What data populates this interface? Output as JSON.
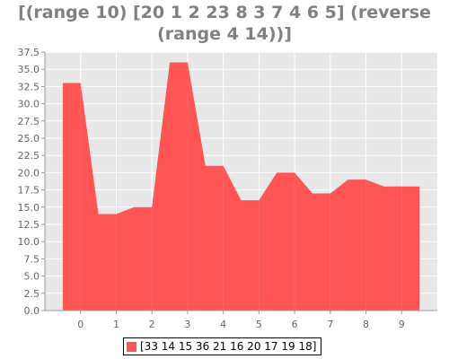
{
  "title": {
    "line1": "[(range 10) [20 1 2 23 8 3 7 4 6 5] (reverse",
    "line2": "(range 4 14))]"
  },
  "colors": {
    "series": "#ff5555",
    "plot_background": "#e8e8e8",
    "gridline": "#ffffff",
    "title": "#808080"
  },
  "chart_data": {
    "type": "area",
    "x": [
      0,
      1,
      2,
      3,
      4,
      5,
      6,
      7,
      8,
      9
    ],
    "series": [
      {
        "name": "[33 14 15 36 21 16 20 17 19 18]",
        "values": [
          33,
          14,
          15,
          36,
          21,
          16,
          20,
          17,
          19,
          18
        ]
      }
    ],
    "xlim": [
      -1,
      10
    ],
    "ylim": [
      0,
      37.5
    ],
    "y_ticks": [
      "0.0",
      "2.5",
      "5.0",
      "7.5",
      "10.0",
      "12.5",
      "15.0",
      "17.5",
      "20.0",
      "22.5",
      "25.0",
      "27.5",
      "30.0",
      "32.5",
      "35.0",
      "37.5"
    ],
    "x_ticks": [
      "0",
      "1",
      "2",
      "3",
      "4",
      "5",
      "6",
      "7",
      "8",
      "9"
    ],
    "grid": true,
    "legend_position": "bottom"
  }
}
